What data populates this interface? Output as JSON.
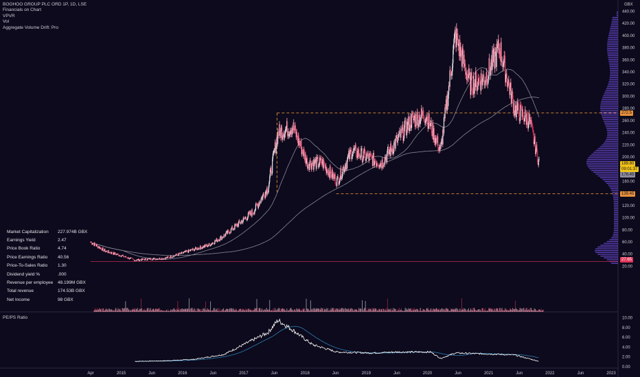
{
  "legend": {
    "title": "BOOHOO GROUP PLC ORD 1P, 1D, LSE",
    "items": [
      "Financials on Chart",
      "VPVR",
      "Vol",
      "Aggregate Volume Drift: Pro"
    ]
  },
  "currency": "GBX",
  "pe_panel_label": "PE/PS Ratio",
  "financials": [
    {
      "label": "Market Capitalization",
      "value": "227.974B  GBX"
    },
    {
      "label": "Earnings Yield",
      "value": "2.47"
    },
    {
      "label": "Price Book Ratio",
      "value": "4.74"
    },
    {
      "label": "Price Earnings Ratio",
      "value": "40.56"
    },
    {
      "label": "Price-To-Sales Ratio",
      "value": "1.30"
    },
    {
      "label": "Dividend yield %",
      "value": ".000"
    },
    {
      "label": "Revenue per employee",
      "value": "48.199M  GBX"
    },
    {
      "label": "Total revenue",
      "value": "174.53B  GBX"
    },
    {
      "label": "Net Income",
      "value": "98  GBX"
    }
  ],
  "price_tags": {
    "resistance": "272.5",
    "last": "189.80",
    "countdown": "09:01:37",
    "ma": "176.45",
    "support": "139.45",
    "bottom": "27.65"
  },
  "colors": {
    "background": "#0c0a1c",
    "candle_up": "#e8e8f0",
    "candle_down": "#e0365a",
    "ma": "#8a8a9a",
    "vpvr": "#6f4bd8",
    "level": "#e8903a",
    "pe_line": "#ffffff",
    "pe_ma": "#2f7fb5"
  },
  "chart_data": [
    {
      "type": "line",
      "title": "BOOHOO GROUP PLC ORD 1P, 1D, LSE",
      "x_ticks": [
        "Apr",
        "2015",
        "Jun",
        "2016",
        "Jun",
        "2017",
        "Jun",
        "2018",
        "Jun",
        "2019",
        "Jun",
        "2020",
        "Jun",
        "2021",
        "Jun",
        "2022",
        "Jun",
        "2023"
      ],
      "y_ticks": [
        20,
        40,
        60,
        80,
        100,
        120,
        140,
        160,
        180,
        200,
        220,
        240,
        260,
        280,
        300,
        320,
        340,
        360,
        380,
        400,
        420,
        440
      ],
      "ylim": [
        20,
        445
      ],
      "unit": "GBX",
      "levels": {
        "resistance": 272.5,
        "support": 139.45,
        "last": 189.8
      },
      "series": [
        {
          "x": [
            "2014-04",
            "2014-07",
            "2014-10",
            "2015-01",
            "2015-04",
            "2015-07",
            "2015-10",
            "2016-01",
            "2016-04",
            "2016-07",
            "2016-10",
            "2017-01",
            "2017-04",
            "2017-06",
            "2017-09",
            "2017-12",
            "2018-03",
            "2018-06",
            "2018-09",
            "2018-12",
            "2019-03",
            "2019-06",
            "2019-09",
            "2019-12",
            "2020-03",
            "2020-06",
            "2020-09",
            "2020-12",
            "2021-03",
            "2021-06",
            "2021-09",
            "2021-11"
          ],
          "values": [
            60,
            45,
            38,
            30,
            32,
            33,
            40,
            48,
            55,
            70,
            90,
            110,
            150,
            240,
            250,
            190,
            190,
            160,
            210,
            200,
            190,
            225,
            260,
            270,
            210,
            400,
            320,
            330,
            380,
            280,
            260,
            190
          ]
        }
      ]
    },
    {
      "type": "line",
      "title": "PE/PS Ratio",
      "y_ticks": [
        0,
        2,
        4,
        6,
        8,
        10
      ],
      "ylim": [
        0,
        10.5
      ],
      "series": [
        {
          "x": [
            "2015-01",
            "2015-07",
            "2016-01",
            "2016-07",
            "2017-01",
            "2017-04",
            "2017-06",
            "2017-09",
            "2018-01",
            "2018-06",
            "2019-01",
            "2019-06",
            "2020-01",
            "2020-03",
            "2020-06",
            "2021-01",
            "2021-06",
            "2021-11"
          ],
          "values": [
            1.1,
            1.2,
            1.5,
            2.5,
            5.5,
            7.0,
            9.5,
            7.5,
            4.5,
            3.0,
            2.8,
            3.0,
            3.0,
            1.7,
            2.8,
            2.6,
            2.4,
            1.1
          ]
        }
      ]
    }
  ]
}
